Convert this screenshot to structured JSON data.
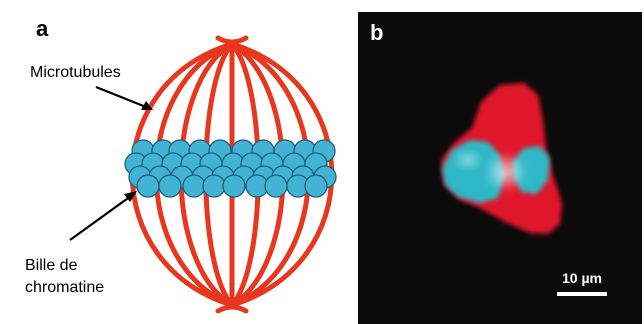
{
  "panels": {
    "a": {
      "letter": "a",
      "labels": {
        "microtubules": "Microtubules",
        "chromatin_line1": "Bille de",
        "chromatin_line2": "chromatine"
      }
    },
    "b": {
      "letter": "b",
      "scale_bar_label": "10 µm"
    }
  },
  "colors": {
    "microtubule_red": "#e8371f",
    "chromatin_blue": "#42b3d5",
    "chromatin_outline": "#1f5f78",
    "micrograph_background": "#0b0b0b",
    "micrograph_red": "#e0182a",
    "micrograph_cyan": "#2fb7c6"
  }
}
